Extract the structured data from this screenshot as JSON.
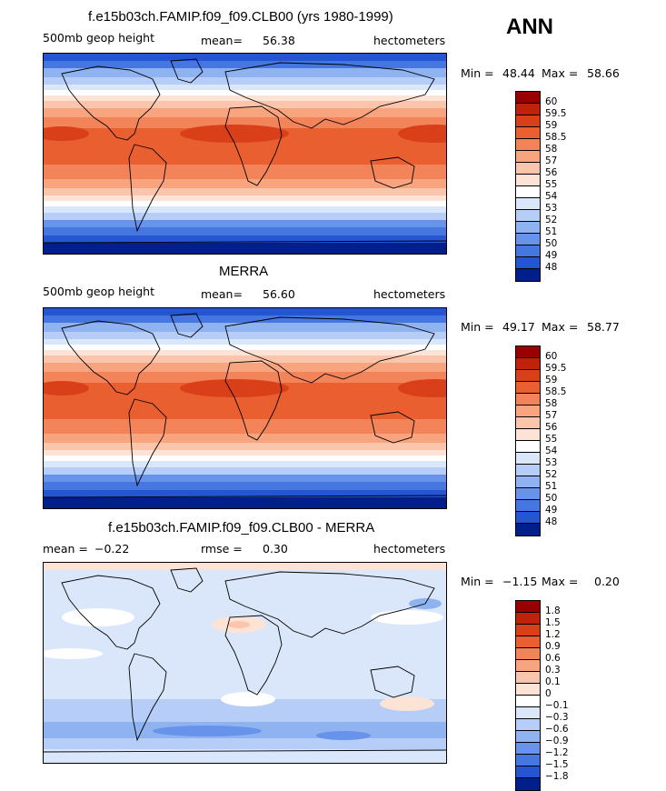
{
  "season": "ANN",
  "units": "hectometers",
  "panels": [
    {
      "title": "f.e15b03ch.FAMIP.f09_f09.CLB00 (yrs 1980-1999)",
      "left_label": "500mb geop height",
      "stat_label": "mean=",
      "stat_value": "56.38",
      "stat2_label": "",
      "stat2_value": "",
      "units": "hectometers",
      "min_label": "Min =",
      "min": "48.44",
      "max_label": "Max =",
      "max": "58.66",
      "colorbar_labels": [
        "60",
        "59.5",
        "59",
        "58.5",
        "58",
        "57",
        "56",
        "55",
        "54",
        "53",
        "52",
        "51",
        "50",
        "49",
        "48"
      ]
    },
    {
      "title": "MERRA",
      "left_label": "500mb geop height",
      "stat_label": "mean=",
      "stat_value": "56.60",
      "stat2_label": "",
      "stat2_value": "",
      "units": "hectometers",
      "min_label": "Min =",
      "min": "49.17",
      "max_label": "Max =",
      "max": "58.77",
      "colorbar_labels": [
        "60",
        "59.5",
        "59",
        "58.5",
        "58",
        "57",
        "56",
        "55",
        "54",
        "53",
        "52",
        "51",
        "50",
        "49",
        "48"
      ]
    },
    {
      "title": "f.e15b03ch.FAMIP.f09_f09.CLB00 - MERRA",
      "left_label": "mean =",
      "left_value": "−0.22",
      "stat_label": "rmse =",
      "stat_value": "0.30",
      "units": "hectometers",
      "min_label": "Min =",
      "min": "−1.15",
      "max_label": "Max =",
      "max": "0.20",
      "colorbar_labels": [
        "1.8",
        "1.5",
        "1.2",
        "0.9",
        "0.6",
        "0.3",
        "0.1",
        "0",
        "−0.1",
        "−0.3",
        "−0.6",
        "−0.9",
        "−1.2",
        "−1.5",
        "−1.8"
      ]
    }
  ],
  "colors": {
    "palette": [
      "#990000",
      "#c0210b",
      "#d9401a",
      "#ea5f2f",
      "#f3845a",
      "#f7a47f",
      "#fbc5ab",
      "#fde3d6",
      "#ffffff",
      "#dae7fb",
      "#b5cdf7",
      "#8fb2f0",
      "#6893ea",
      "#4676e0",
      "#2455d2",
      "#0b37b2",
      "#001f8a"
    ],
    "ocean_hint": "#ea6b44"
  }
}
